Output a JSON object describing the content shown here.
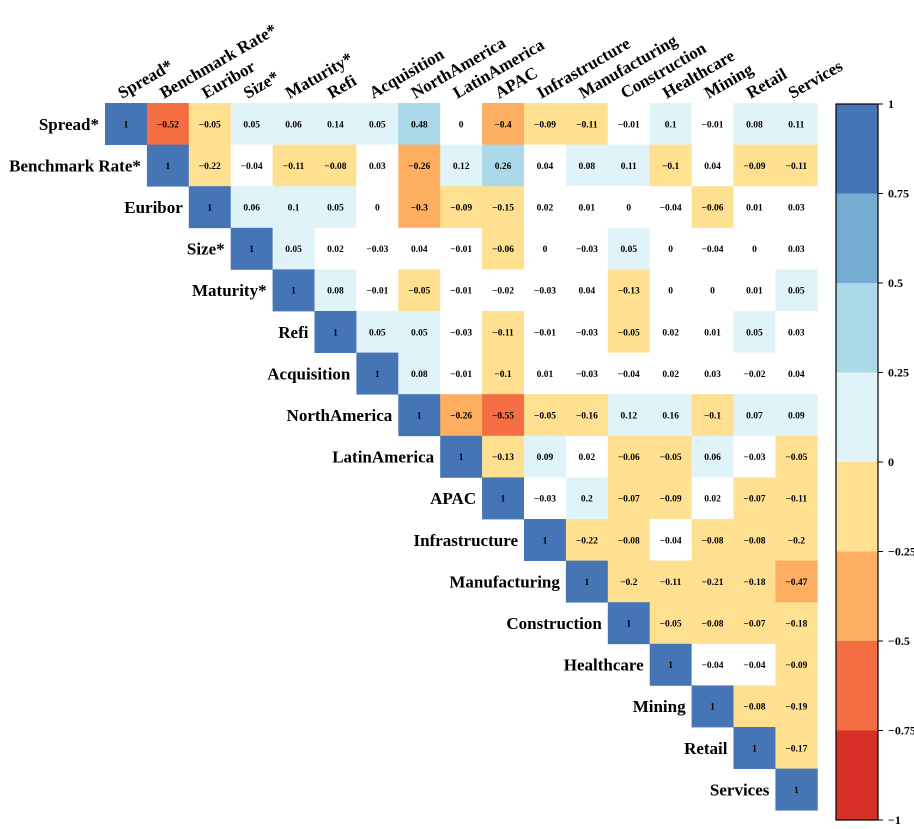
{
  "chart_data": {
    "type": "heatmap",
    "variables": [
      "Spread*",
      "Benchmark Rate*",
      "Euribor",
      "Size*",
      "Maturity*",
      "Refi",
      "Acquisition",
      "NorthAmerica",
      "LatinAmerica",
      "APAC",
      "Infrastructure",
      "Manufacturing",
      "Construction",
      "Healthcare",
      "Mining",
      "Retail",
      "Services"
    ],
    "matrix": [
      [
        1,
        -0.52,
        -0.05,
        0.05,
        0.06,
        0.14,
        0.05,
        0.48,
        0,
        -0.4,
        -0.09,
        -0.11,
        -0.01,
        0.1,
        -0.01,
        0.08,
        0.11
      ],
      [
        1,
        -0.22,
        -0.04,
        -0.11,
        -0.08,
        0.03,
        -0.26,
        0.12,
        0.26,
        0.04,
        0.08,
        0.11,
        -0.1,
        0.04,
        -0.09,
        -0.11
      ],
      [
        1,
        0.06,
        0.1,
        0.05,
        0,
        -0.3,
        -0.09,
        -0.15,
        0.02,
        0.01,
        0,
        -0.04,
        -0.06,
        0.01,
        0.03
      ],
      [
        1,
        0.05,
        0.02,
        -0.03,
        0.04,
        -0.01,
        -0.06,
        0,
        -0.03,
        0.05,
        0,
        -0.04,
        0,
        0.03
      ],
      [
        1,
        0.08,
        -0.01,
        -0.05,
        -0.01,
        -0.02,
        -0.03,
        0.04,
        -0.13,
        0,
        0,
        0.01,
        0.05
      ],
      [
        1,
        0.05,
        0.05,
        -0.03,
        -0.11,
        -0.01,
        -0.03,
        -0.05,
        0.02,
        0.01,
        0.05,
        0.03
      ],
      [
        1,
        0.08,
        -0.01,
        -0.1,
        0.01,
        -0.03,
        -0.04,
        0.02,
        0.03,
        -0.02,
        0.04
      ],
      [
        1,
        -0.26,
        -0.55,
        -0.05,
        -0.16,
        0.12,
        0.16,
        -0.1,
        0.07,
        0.09
      ],
      [
        1,
        -0.13,
        0.09,
        0.02,
        -0.06,
        -0.05,
        0.06,
        -0.03,
        -0.05
      ],
      [
        1,
        -0.03,
        0.2,
        -0.07,
        -0.09,
        0.02,
        -0.07,
        -0.11
      ],
      [
        1,
        -0.22,
        -0.08,
        -0.04,
        -0.08,
        -0.08,
        -0.2
      ],
      [
        1,
        -0.2,
        -0.11,
        -0.21,
        -0.18,
        -0.47
      ],
      [
        1,
        -0.05,
        -0.08,
        -0.07,
        -0.18
      ],
      [
        1,
        -0.04,
        -0.04,
        -0.09
      ],
      [
        1,
        -0.08,
        -0.19
      ],
      [
        1,
        -0.17
      ],
      [
        1
      ]
    ],
    "value_range": [
      -1,
      1
    ],
    "colorbar": {
      "ticks": [
        1,
        0.75,
        0.5,
        0.25,
        0,
        -0.25,
        -0.5,
        -0.75,
        -1
      ],
      "tick_labels": [
        "1",
        "0.75",
        "0.5",
        "0.25",
        "0",
        "−0.25",
        "−0.5",
        "−0.75",
        "−1"
      ],
      "bins": [
        {
          "min": -1.0,
          "max": -0.75,
          "color": "#d73027"
        },
        {
          "min": -0.75,
          "max": -0.5,
          "color": "#f46d43"
        },
        {
          "min": -0.5,
          "max": -0.25,
          "color": "#fdae61"
        },
        {
          "min": -0.25,
          "max": 0.0,
          "color": "#fee090"
        },
        {
          "min": 0.0,
          "max": 0.25,
          "color": "#e0f3f8"
        },
        {
          "min": 0.25,
          "max": 0.5,
          "color": "#abd9e9"
        },
        {
          "min": 0.5,
          "max": 0.75,
          "color": "#74add1"
        },
        {
          "min": 0.75,
          "max": 1.0,
          "color": "#4575b4"
        }
      ]
    },
    "white_band": 0.045,
    "title": "",
    "xlabel": "",
    "ylabel": ""
  }
}
